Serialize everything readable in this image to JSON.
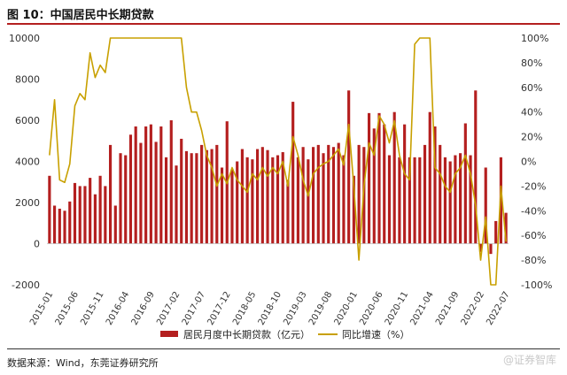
{
  "header": {
    "title": "图 10：中国居民中长期贷款"
  },
  "footer": {
    "source": "数据来源：Wind，东莞证券研究所",
    "watermark": "@证券智库"
  },
  "chart_data": {
    "type": "bar",
    "title": "图 10：中国居民中长期贷款",
    "y_left": {
      "ylim": [
        -2000,
        10000
      ],
      "ticks": [
        "-2000",
        "0",
        "2000",
        "4000",
        "6000",
        "8000",
        "10000"
      ]
    },
    "y_right": {
      "ylim": [
        -100,
        100
      ],
      "ticks": [
        "-100%",
        "-80%",
        "-60%",
        "-40%",
        "-20%",
        "0%",
        "20%",
        "40%",
        "60%",
        "80%",
        "100%"
      ]
    },
    "x_tick_labels": [
      "2015-01",
      "2015-06",
      "2015-11",
      "2016-04",
      "2016-09",
      "2017-02",
      "2017-07",
      "2017-12",
      "2018-05",
      "2018-10",
      "2019-03",
      "2019-08",
      "2020-01",
      "2020-06",
      "2020-11",
      "2021-04",
      "2021-09",
      "2022-02",
      "2022-07"
    ],
    "grid": false,
    "legend_position": "bottom",
    "colors": {
      "bar": "#b41f1f",
      "line": "#c8a000",
      "title_rule": "#b41f1f"
    },
    "months": [
      "2015-01",
      "2015-02",
      "2015-03",
      "2015-04",
      "2015-05",
      "2015-06",
      "2015-07",
      "2015-08",
      "2015-09",
      "2015-10",
      "2015-11",
      "2015-12",
      "2016-01",
      "2016-02",
      "2016-03",
      "2016-04",
      "2016-05",
      "2016-06",
      "2016-07",
      "2016-08",
      "2016-09",
      "2016-10",
      "2016-11",
      "2016-12",
      "2017-01",
      "2017-02",
      "2017-03",
      "2017-04",
      "2017-05",
      "2017-06",
      "2017-07",
      "2017-08",
      "2017-09",
      "2017-10",
      "2017-11",
      "2017-12",
      "2018-01",
      "2018-02",
      "2018-03",
      "2018-04",
      "2018-05",
      "2018-06",
      "2018-07",
      "2018-08",
      "2018-09",
      "2018-10",
      "2018-11",
      "2018-12",
      "2019-01",
      "2019-02",
      "2019-03",
      "2019-04",
      "2019-05",
      "2019-06",
      "2019-07",
      "2019-08",
      "2019-09",
      "2019-10",
      "2019-11",
      "2019-12",
      "2020-01",
      "2020-02",
      "2020-03",
      "2020-04",
      "2020-05",
      "2020-06",
      "2020-07",
      "2020-08",
      "2020-09",
      "2020-10",
      "2020-11",
      "2020-12",
      "2021-01",
      "2021-02",
      "2021-03",
      "2021-04",
      "2021-05",
      "2021-06",
      "2021-07",
      "2021-08",
      "2021-09",
      "2021-10",
      "2021-11",
      "2021-12",
      "2022-01",
      "2022-02",
      "2022-03",
      "2022-04",
      "2022-05",
      "2022-06",
      "2022-07"
    ],
    "series": [
      {
        "name": "居民月度中长期贷款（亿元）",
        "kind": "bar",
        "axis": "left",
        "values": [
          3300,
          1850,
          1700,
          1600,
          2050,
          2950,
          2800,
          2800,
          3200,
          2400,
          3300,
          2800,
          4800,
          1850,
          4400,
          4300,
          5300,
          5700,
          4900,
          5700,
          5800,
          4950,
          5700,
          4200,
          6000,
          3800,
          5100,
          4500,
          4400,
          4400,
          4800,
          4550,
          4600,
          4800,
          3700,
          5950,
          3600,
          4000,
          4600,
          4200,
          4100,
          4600,
          4700,
          4550,
          4200,
          4300,
          4450,
          3100,
          6900,
          4200,
          4700,
          4100,
          4700,
          4800,
          4400,
          4800,
          4700,
          4900,
          4300,
          7450,
          3300,
          4800,
          4700,
          6350,
          5600,
          6350,
          5800,
          4300,
          6400,
          4200,
          5800,
          4200,
          4200,
          4200,
          4800,
          6400,
          5700,
          4800,
          4200,
          4000,
          4300,
          4400,
          5850,
          4300,
          7450,
          -400,
          3700,
          -500,
          1100,
          4200,
          1500
        ]
      },
      {
        "name": "同比增速（%）",
        "kind": "line",
        "axis": "right",
        "values": [
          5,
          50,
          -15,
          -17,
          -2,
          45,
          55,
          50,
          88,
          68,
          78,
          72,
          100,
          100,
          100,
          100,
          100,
          100,
          100,
          100,
          100,
          100,
          100,
          100,
          100,
          100,
          100,
          60,
          40,
          40,
          25,
          5,
          -5,
          -20,
          -10,
          -18,
          -5,
          -15,
          -20,
          -25,
          -10,
          -15,
          -5,
          -12,
          -5,
          -10,
          0,
          -20,
          20,
          5,
          -15,
          -28,
          -10,
          -5,
          -2,
          0,
          5,
          10,
          -3,
          30,
          -20,
          -80,
          -20,
          15,
          5,
          37,
          30,
          15,
          33,
          5,
          -10,
          -15,
          95,
          100,
          100,
          100,
          -5,
          -10,
          -20,
          -25,
          -10,
          -5,
          5,
          -10,
          -35,
          -80,
          -45,
          -100,
          -100,
          -20,
          -65
        ]
      }
    ]
  }
}
